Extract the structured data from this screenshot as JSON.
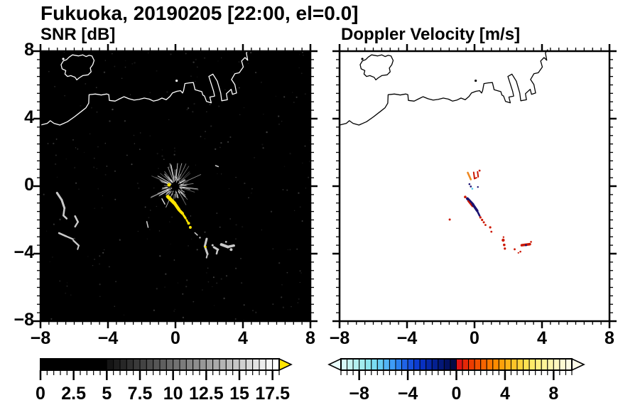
{
  "title": "Fukuoka, 20190205 [22:00, el=0.0]",
  "panels": {
    "snr": {
      "title": "SNR [dB]"
    },
    "vel": {
      "title": "Doppler Velocity [m/s]"
    }
  },
  "axes": {
    "xmin": -8,
    "xmax": 8,
    "ymin": -8,
    "ymax": 8,
    "major_step": 4,
    "minor_step": 0.5,
    "x_tick_values": [
      -8,
      -4,
      0,
      4,
      8
    ],
    "x_tick_labels": [
      "−8",
      "−4",
      "0",
      "4",
      "8"
    ],
    "y_tick_values": [
      8,
      4,
      0,
      -4,
      -8
    ],
    "y_tick_labels": [
      "8",
      "4",
      "0",
      "−4",
      "−8"
    ]
  },
  "chart_data": {
    "type": "heatmap",
    "figure": "radar PPI pair, range ±8 km, elevation 0.0 deg",
    "coastline": {
      "mainland": [
        [
          -8.0,
          3.62
        ],
        [
          -7.6,
          3.72
        ],
        [
          -7.42,
          3.88
        ],
        [
          -7.2,
          3.72
        ],
        [
          -6.85,
          3.62
        ],
        [
          -6.4,
          3.82
        ],
        [
          -6.0,
          4.1
        ],
        [
          -5.55,
          4.45
        ],
        [
          -5.3,
          4.65
        ],
        [
          -5.14,
          4.92
        ],
        [
          -5.12,
          5.42
        ],
        [
          -4.75,
          5.46
        ],
        [
          -4.4,
          5.4
        ],
        [
          -4.08,
          5.46
        ],
        [
          -3.95,
          5.42
        ],
        [
          -3.92,
          5.08
        ],
        [
          -3.58,
          5.04
        ],
        [
          -3.3,
          5.18
        ],
        [
          -3.05,
          5.3
        ],
        [
          -2.75,
          5.18
        ],
        [
          -2.45,
          5.1
        ],
        [
          -2.15,
          5.14
        ],
        [
          -1.85,
          5.22
        ],
        [
          -1.55,
          5.16
        ],
        [
          -1.3,
          5.04
        ],
        [
          -1.05,
          5.1
        ],
        [
          -0.8,
          5.22
        ],
        [
          -0.55,
          5.12
        ],
        [
          -0.32,
          5.32
        ],
        [
          -0.18,
          5.52
        ],
        [
          0.08,
          5.62
        ],
        [
          0.3,
          5.66
        ],
        [
          0.42,
          5.52
        ],
        [
          0.48,
          5.66
        ],
        [
          0.56,
          6.08
        ],
        [
          0.82,
          6.12
        ],
        [
          1.06,
          6.14
        ],
        [
          1.16,
          5.72
        ],
        [
          1.36,
          5.66
        ],
        [
          1.56,
          5.6
        ],
        [
          1.62,
          5.4
        ],
        [
          1.72,
          5.34
        ],
        [
          1.84,
          5.02
        ],
        [
          2.12,
          4.94
        ],
        [
          2.04,
          5.28
        ],
        [
          2.32,
          5.34
        ],
        [
          2.26,
          5.62
        ],
        [
          1.98,
          6.5
        ],
        [
          2.22,
          6.64
        ],
        [
          2.48,
          6.22
        ],
        [
          2.68,
          5.52
        ],
        [
          2.74,
          5.06
        ],
        [
          3.08,
          5.12
        ],
        [
          3.02,
          5.48
        ],
        [
          3.3,
          5.74
        ],
        [
          3.38,
          5.44
        ],
        [
          3.62,
          5.52
        ],
        [
          3.52,
          6.02
        ],
        [
          3.32,
          6.32
        ],
        [
          3.52,
          6.66
        ],
        [
          3.78,
          6.72
        ],
        [
          4.02,
          7.06
        ],
        [
          3.92,
          7.42
        ],
        [
          4.12,
          7.62
        ],
        [
          4.28,
          7.46
        ],
        [
          4.2,
          7.9
        ],
        [
          4.35,
          8.1
        ]
      ],
      "island": [
        [
          -6.1,
          7.78
        ],
        [
          -5.75,
          7.72
        ],
        [
          -5.5,
          7.78
        ],
        [
          -5.3,
          7.68
        ],
        [
          -5.12,
          7.75
        ],
        [
          -4.95,
          7.72
        ],
        [
          -4.82,
          7.45
        ],
        [
          -4.9,
          7.2
        ],
        [
          -5.05,
          7.0
        ],
        [
          -5.0,
          6.78
        ],
        [
          -5.18,
          6.6
        ],
        [
          -5.5,
          6.55
        ],
        [
          -5.7,
          6.42
        ],
        [
          -5.85,
          6.3
        ],
        [
          -5.95,
          6.45
        ],
        [
          -6.2,
          6.55
        ],
        [
          -6.4,
          6.5
        ],
        [
          -6.55,
          6.65
        ],
        [
          -6.5,
          6.85
        ],
        [
          -6.72,
          6.95
        ],
        [
          -6.78,
          7.2
        ],
        [
          -6.65,
          7.42
        ],
        [
          -6.45,
          7.5
        ],
        [
          -6.3,
          7.65
        ],
        [
          -6.1,
          7.78
        ]
      ],
      "islets": [
        [
          -6.65,
          7.54
        ],
        [
          0.07,
          6.25
        ]
      ]
    },
    "panels": [
      {
        "id": "snr",
        "title": "SNR [dB]",
        "bg": "#000000",
        "coast_color": "#ffffff",
        "xlim": [
          -8,
          8
        ],
        "ylim": [
          -8,
          8
        ],
        "radar_site": {
          "x": 0,
          "y": 0,
          "note": "starburst clutter at radar origin"
        },
        "starburst": {
          "cx": 0,
          "cy": 0,
          "rays": 95,
          "seed": 7,
          "color": "#ffffff"
        },
        "noise": {
          "count": 260,
          "seed": 13,
          "color": "#ffffff"
        },
        "strokes": [
          [
            -0.45,
            -0.62,
            -0.05,
            -1.02,
            5,
            "#ffe400"
          ],
          [
            -0.05,
            -1.02,
            0.2,
            -1.38,
            4.5,
            "#ffe400"
          ],
          [
            0.22,
            -1.42,
            0.42,
            -1.62,
            4,
            "#ffe400"
          ],
          [
            0.48,
            -1.72,
            0.6,
            -1.9,
            3,
            "#ffe400"
          ],
          [
            0.66,
            -2.0,
            0.72,
            -2.12,
            2.5,
            "#ffe400"
          ],
          [
            -0.8,
            -0.75,
            -0.63,
            -1.06,
            1.5,
            "#dddddd"
          ],
          [
            -7.02,
            -0.4,
            -6.74,
            -0.82,
            3,
            "#c9c9c9"
          ],
          [
            -6.74,
            -0.82,
            -6.58,
            -1.3,
            3,
            "#c9c9c9"
          ],
          [
            -6.58,
            -1.3,
            -6.64,
            -1.74,
            2.6,
            "#c9c9c9"
          ],
          [
            -6.64,
            -1.74,
            -6.45,
            -1.92,
            2.6,
            "#c9c9c9"
          ],
          [
            -5.95,
            -1.78,
            -5.78,
            -2.12,
            2.6,
            "#c9c9c9"
          ],
          [
            -5.78,
            -2.12,
            -5.95,
            -2.4,
            2.4,
            "#c9c9c9"
          ],
          [
            -6.9,
            -2.78,
            -6.5,
            -2.96,
            2.6,
            "#c9c9c9"
          ],
          [
            -6.5,
            -2.96,
            -6.08,
            -3.14,
            2.4,
            "#c9c9c9"
          ],
          [
            -6.05,
            -3.22,
            -5.73,
            -3.52,
            2.4,
            "#c9c9c9"
          ],
          [
            -5.73,
            -3.52,
            -5.8,
            -3.74,
            2,
            "#c9c9c9"
          ],
          [
            -1.7,
            -2.1,
            -1.62,
            -2.44,
            1.6,
            "#cccccc"
          ],
          [
            2.38,
            1.22,
            2.54,
            1.16,
            1.6,
            "#cccccc"
          ],
          [
            1.85,
            -3.12,
            1.74,
            -3.56,
            3,
            "#c9c9c9"
          ],
          [
            1.74,
            -3.56,
            1.9,
            -4.02,
            3,
            "#c9c9c9"
          ],
          [
            1.9,
            -4.02,
            1.84,
            -4.24,
            2,
            "#c9c9c9"
          ],
          [
            2.28,
            -3.62,
            2.52,
            -3.76,
            3,
            "#c9c9c9"
          ],
          [
            2.5,
            -3.76,
            2.44,
            -4.0,
            2.5,
            "#c9c9c9"
          ],
          [
            2.72,
            -3.46,
            3.1,
            -3.6,
            4,
            "#c9c9c9"
          ],
          [
            3.1,
            -3.6,
            3.46,
            -3.52,
            3.5,
            "#c9c9c9"
          ],
          [
            1.15,
            -2.76,
            1.3,
            -2.9,
            1.6,
            "#c9c9c9"
          ]
        ],
        "dots": [
          [
            -0.38,
            0.08,
            2.5,
            "#ffe400"
          ],
          [
            0.78,
            -2.2,
            2,
            "#ffe400"
          ],
          [
            0.88,
            -2.44,
            2,
            "#ffe400"
          ],
          [
            1.78,
            -3.6,
            1.5,
            "#ffe400"
          ],
          [
            3.3,
            -3.76,
            2,
            "#c9c9c9"
          ],
          [
            2.2,
            -3.5,
            1.5,
            "#c9c9c9"
          ],
          [
            1.45,
            -3.05,
            1.2,
            "#c9c9c9"
          ],
          [
            3.0,
            -3.3,
            1.3,
            "#c9c9c9"
          ]
        ],
        "colorbar": {
          "min": 0,
          "max": 18,
          "segment_step": 0.5,
          "tick_values": [
            0,
            2.5,
            5,
            7.5,
            10,
            12.5,
            15,
            17.5
          ],
          "tick_labels": [
            "0",
            "2.5",
            "5",
            "7.5",
            "10",
            "12.5",
            "15",
            "17.5"
          ],
          "minor_step": 0.5,
          "segments": [
            "#000000",
            "#000000",
            "#000000",
            "#000000",
            "#000000",
            "#000000",
            "#000000",
            "#000000",
            "#000000",
            "#000000",
            "#141414",
            "#1d1d1d",
            "#272727",
            "#303030",
            "#3a3a3a",
            "#434343",
            "#4c4c4c",
            "#565656",
            "#5f5f5f",
            "#696969",
            "#727272",
            "#7b7b7b",
            "#858585",
            "#8e8e8e",
            "#989898",
            "#a1a1a1",
            "#aaaaaa",
            "#b4b4b4",
            "#bdbdbd",
            "#c7c7c7",
            "#d0d0d0",
            "#d9d9d9",
            "#e3e3e3",
            "#ececec",
            "#f6f6f6",
            "#ffffff"
          ],
          "over_arrow_color": "#ffe400"
        }
      },
      {
        "id": "vel",
        "title": "Doppler Velocity [m/s]",
        "bg": "#ffffff",
        "coast_color": "#000000",
        "xlim": [
          -8,
          8
        ],
        "ylim": [
          -8,
          8
        ],
        "strokes": [
          [
            -0.22,
            0.4,
            -0.4,
            0.8,
            2.6,
            "#ee8822"
          ],
          [
            -0.05,
            0.82,
            0.0,
            0.45,
            2,
            "#cc1803"
          ],
          [
            0.0,
            0.45,
            0.12,
            0.5,
            2,
            "#cc1803"
          ],
          [
            0.18,
            0.85,
            0.22,
            0.55,
            2,
            "#cc1803"
          ],
          [
            -0.42,
            -0.74,
            -0.1,
            -1.08,
            4,
            "#191070"
          ],
          [
            -0.38,
            -0.88,
            -0.12,
            -1.2,
            2.2,
            "#cc1803"
          ],
          [
            -0.1,
            -1.08,
            0.16,
            -1.46,
            3.6,
            "#191070"
          ],
          [
            0.2,
            -1.55,
            0.3,
            -1.75,
            2.6,
            "#191070"
          ],
          [
            2.8,
            -3.5,
            3.28,
            -3.44,
            3.6,
            "#cc1803"
          ]
        ],
        "dots": [
          [
            0.3,
            0.92,
            1.4,
            "#cc1803"
          ],
          [
            -0.3,
            0.12,
            1.3,
            "#191070"
          ],
          [
            -0.22,
            -0.02,
            1.3,
            "#191070"
          ],
          [
            0.2,
            -0.05,
            1.2,
            "#191070"
          ],
          [
            -0.13,
            -0.15,
            1.3,
            "#55ccee"
          ],
          [
            -0.55,
            -0.64,
            1.8,
            "#cc1803"
          ],
          [
            -1.47,
            -1.98,
            1.5,
            "#cc1803"
          ],
          [
            0.35,
            -1.85,
            1.6,
            "#cc1803"
          ],
          [
            0.45,
            -2.0,
            1.6,
            "#cc1803"
          ],
          [
            0.55,
            -2.14,
            1.5,
            "#cc1803"
          ],
          [
            0.65,
            -2.3,
            1.4,
            "#cc1803"
          ],
          [
            0.93,
            -2.44,
            1.6,
            "#cc1803"
          ],
          [
            1.0,
            -2.7,
            1.4,
            "#cc1803"
          ],
          [
            1.7,
            -3.2,
            2.2,
            "#cc1803"
          ],
          [
            1.76,
            -3.48,
            1.8,
            "#cc1803"
          ],
          [
            1.8,
            -3.7,
            1.6,
            "#cc1803"
          ],
          [
            1.72,
            -3.02,
            1.2,
            "#cc1803"
          ],
          [
            2.38,
            -3.74,
            1.4,
            "#cc1803"
          ],
          [
            2.72,
            -3.88,
            1.3,
            "#cc1803"
          ],
          [
            3.05,
            -3.5,
            1.4,
            "#191070"
          ],
          [
            3.35,
            -3.3,
            1.3,
            "#cc1803"
          ],
          [
            2.6,
            -3.95,
            1.1,
            "#cc1803"
          ]
        ],
        "colorbar": {
          "min": -9.5,
          "max": 9.5,
          "segment_step": 0.5,
          "tick_values": [
            -8,
            -4,
            0,
            4,
            8
          ],
          "tick_labels": [
            "−8",
            "−4",
            "0",
            "4",
            "8"
          ],
          "minor_step": 0.5,
          "segments": [
            "#d6f8f6",
            "#c6f4f2",
            "#b4f0f0",
            "#a2ecee",
            "#8ee6ee",
            "#7adcf2",
            "#66ccf4",
            "#52b4f6",
            "#3e9cf8",
            "#2a80f0",
            "#2064e6",
            "#1650dc",
            "#0c3cd2",
            "#0830c0",
            "#0628a8",
            "#042090",
            "#031878",
            "#021060",
            "#010a46",
            "#dd1414",
            "#e42808",
            "#ec3c00",
            "#f25000",
            "#f66400",
            "#fa7800",
            "#fc8c00",
            "#fda00a",
            "#feb418",
            "#fec428",
            "#fed43c",
            "#fee152",
            "#feeb68",
            "#fef080",
            "#fef498",
            "#fdf6ac",
            "#fdf8c0",
            "#fcfad2",
            "#fbfce2"
          ],
          "under_arrow_color": "#e8fcfa",
          "over_arrow_color": "#fcfce8"
        }
      }
    ]
  }
}
